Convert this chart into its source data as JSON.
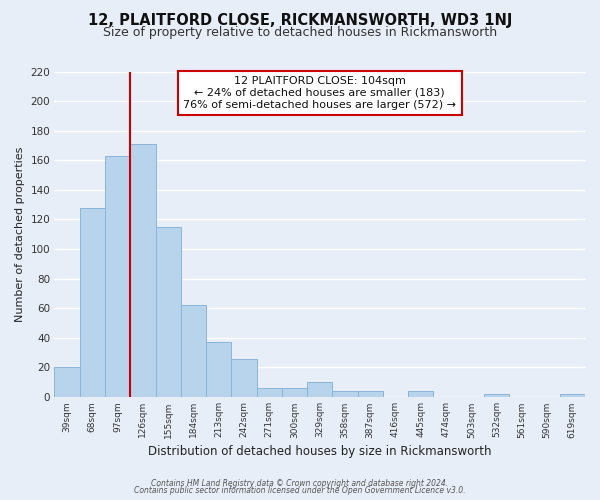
{
  "title": "12, PLAITFORD CLOSE, RICKMANSWORTH, WD3 1NJ",
  "subtitle": "Size of property relative to detached houses in Rickmansworth",
  "xlabel": "Distribution of detached houses by size in Rickmansworth",
  "ylabel": "Number of detached properties",
  "bar_labels": [
    "39sqm",
    "68sqm",
    "97sqm",
    "126sqm",
    "155sqm",
    "184sqm",
    "213sqm",
    "242sqm",
    "271sqm",
    "300sqm",
    "329sqm",
    "358sqm",
    "387sqm",
    "416sqm",
    "445sqm",
    "474sqm",
    "503sqm",
    "532sqm",
    "561sqm",
    "590sqm",
    "619sqm"
  ],
  "bar_values": [
    20,
    128,
    163,
    171,
    115,
    62,
    37,
    26,
    6,
    6,
    10,
    4,
    4,
    0,
    4,
    0,
    0,
    2,
    0,
    0,
    2
  ],
  "bar_color": "#b8d4ec",
  "bar_edge_color": "#8ab4d8",
  "vline_x": 2.5,
  "vline_color": "#cc0000",
  "ylim": [
    0,
    220
  ],
  "yticks": [
    0,
    20,
    40,
    60,
    80,
    100,
    120,
    140,
    160,
    180,
    200,
    220
  ],
  "annotation_title": "12 PLAITFORD CLOSE: 104sqm",
  "annotation_line1": "← 24% of detached houses are smaller (183)",
  "annotation_line2": "76% of semi-detached houses are larger (572) →",
  "annotation_box_color": "#ffffff",
  "annotation_box_edge": "#cc0000",
  "footer1": "Contains HM Land Registry data © Crown copyright and database right 2024.",
  "footer2": "Contains public sector information licensed under the Open Government Licence v3.0.",
  "background_color": "#e8eef8",
  "grid_color": "#ffffff",
  "title_fontsize": 10.5,
  "subtitle_fontsize": 9
}
